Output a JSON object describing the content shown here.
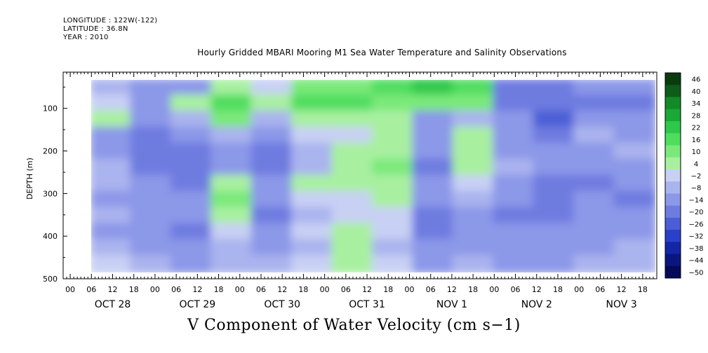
{
  "meta": {
    "longitude": "LONGITUDE : 122W(-122)",
    "latitude": "LATITUDE : 36.8N",
    "year": "YEAR : 2010"
  },
  "chart_data": {
    "type": "heatmap",
    "title": "Hourly Gridded MBARI Mooring M1 Sea Water Temperature and Salinity Observations",
    "xlabel": "V Component of Water Velocity (cm s−1)",
    "ylabel": "DEPTH (m)",
    "y_ticks": [
      100,
      200,
      300,
      400,
      500
    ],
    "y_range": [
      15,
      500
    ],
    "y_inverted": true,
    "x_range": [
      "Oct 27 2010 22:00",
      "Nov 03 2010 22:00"
    ],
    "x_hour_labels": [
      "00",
      "06",
      "12",
      "18",
      "00",
      "06",
      "12",
      "18",
      "00",
      "06",
      "12",
      "18",
      "00",
      "06",
      "12",
      "18",
      "00",
      "06",
      "12",
      "18",
      "00",
      "06",
      "12",
      "18",
      "00",
      "06",
      "12",
      "18"
    ],
    "x_date_labels": [
      "OCT 28",
      "OCT 29",
      "OCT 30",
      "OCT 31",
      "NOV  1",
      "NOV  2",
      "NOV  3"
    ],
    "colorbar_labels": [
      "46",
      "40",
      "34",
      "28",
      "22",
      "16",
      "10",
      "4",
      "−2",
      "−8",
      "−14",
      "−20",
      "−26",
      "−32",
      "−38",
      "−44",
      "−50"
    ],
    "colorbar_range": [
      -50,
      52
    ],
    "colorbar_colors": [
      "#0a3b0f",
      "#0f5c1a",
      "#138a28",
      "#1aa836",
      "#2ec84a",
      "#4fdd5e",
      "#7ae97a",
      "#a8f0a0",
      "#c8d0f4",
      "#aab4ee",
      "#8c98e8",
      "#6e7ce0",
      "#4c5ed6",
      "#2a40c8",
      "#1426a8",
      "#0a1680",
      "#050a58"
    ],
    "data_note": "",
    "columns": [
      {
        "day": "OCT 28",
        "profile": [
          -4,
          2,
          6,
          -8,
          -10,
          -6,
          -4,
          -8,
          -6,
          -10,
          -6,
          4
        ]
      },
      {
        "day": "OCT 28",
        "profile": [
          -10,
          -8,
          -12,
          -14,
          -16,
          -14,
          -10,
          -8,
          -12,
          -10,
          -8,
          -6
        ]
      },
      {
        "day": "OCT 29",
        "profile": [
          -8,
          6,
          -6,
          -12,
          -16,
          -18,
          -14,
          -12,
          -10,
          -14,
          -12,
          -10
        ]
      },
      {
        "day": "OCT 29",
        "profile": [
          10,
          22,
          14,
          -4,
          -10,
          -8,
          6,
          12,
          8,
          4,
          -6,
          -2
        ]
      },
      {
        "day": "OCT 30",
        "profile": [
          4,
          10,
          -6,
          -10,
          -18,
          -16,
          -10,
          -12,
          -14,
          -10,
          -8,
          -4
        ]
      },
      {
        "day": "OCT 30",
        "profile": [
          14,
          18,
          10,
          4,
          -6,
          -4,
          6,
          2,
          -2,
          4,
          -4,
          2
        ]
      },
      {
        "day": "OCT 31",
        "profile": [
          16,
          20,
          8,
          4,
          10,
          6,
          8,
          4,
          2,
          8,
          6,
          10
        ]
      },
      {
        "day": "OCT 31",
        "profile": [
          22,
          16,
          10,
          6,
          8,
          12,
          10,
          6,
          4,
          2,
          -2,
          4
        ]
      },
      {
        "day": "NOV  1",
        "profile": [
          24,
          14,
          -8,
          -12,
          -10,
          -14,
          -12,
          -10,
          -14,
          -16,
          -12,
          -8
        ]
      },
      {
        "day": "NOV  1",
        "profile": [
          20,
          12,
          -4,
          8,
          6,
          10,
          4,
          -6,
          -8,
          -10,
          -12,
          -6
        ]
      },
      {
        "day": "NOV  2",
        "profile": [
          -16,
          -14,
          -10,
          -12,
          -8,
          -6,
          -10,
          -12,
          -14,
          -12,
          -10,
          -8
        ]
      },
      {
        "day": "NOV  2",
        "profile": [
          -14,
          -18,
          -20,
          -16,
          -10,
          -12,
          -14,
          -16,
          -14,
          -12,
          -10,
          -8
        ]
      },
      {
        "day": "NOV  3",
        "profile": [
          -10,
          -14,
          -8,
          -6,
          -10,
          -12,
          -14,
          -10,
          -8,
          -12,
          -10,
          -6
        ]
      },
      {
        "day": "NOV  3",
        "profile": [
          -12,
          -16,
          -12,
          -8,
          -6,
          -10,
          -12,
          -14,
          -12,
          -8,
          -6,
          -4
        ]
      }
    ]
  }
}
